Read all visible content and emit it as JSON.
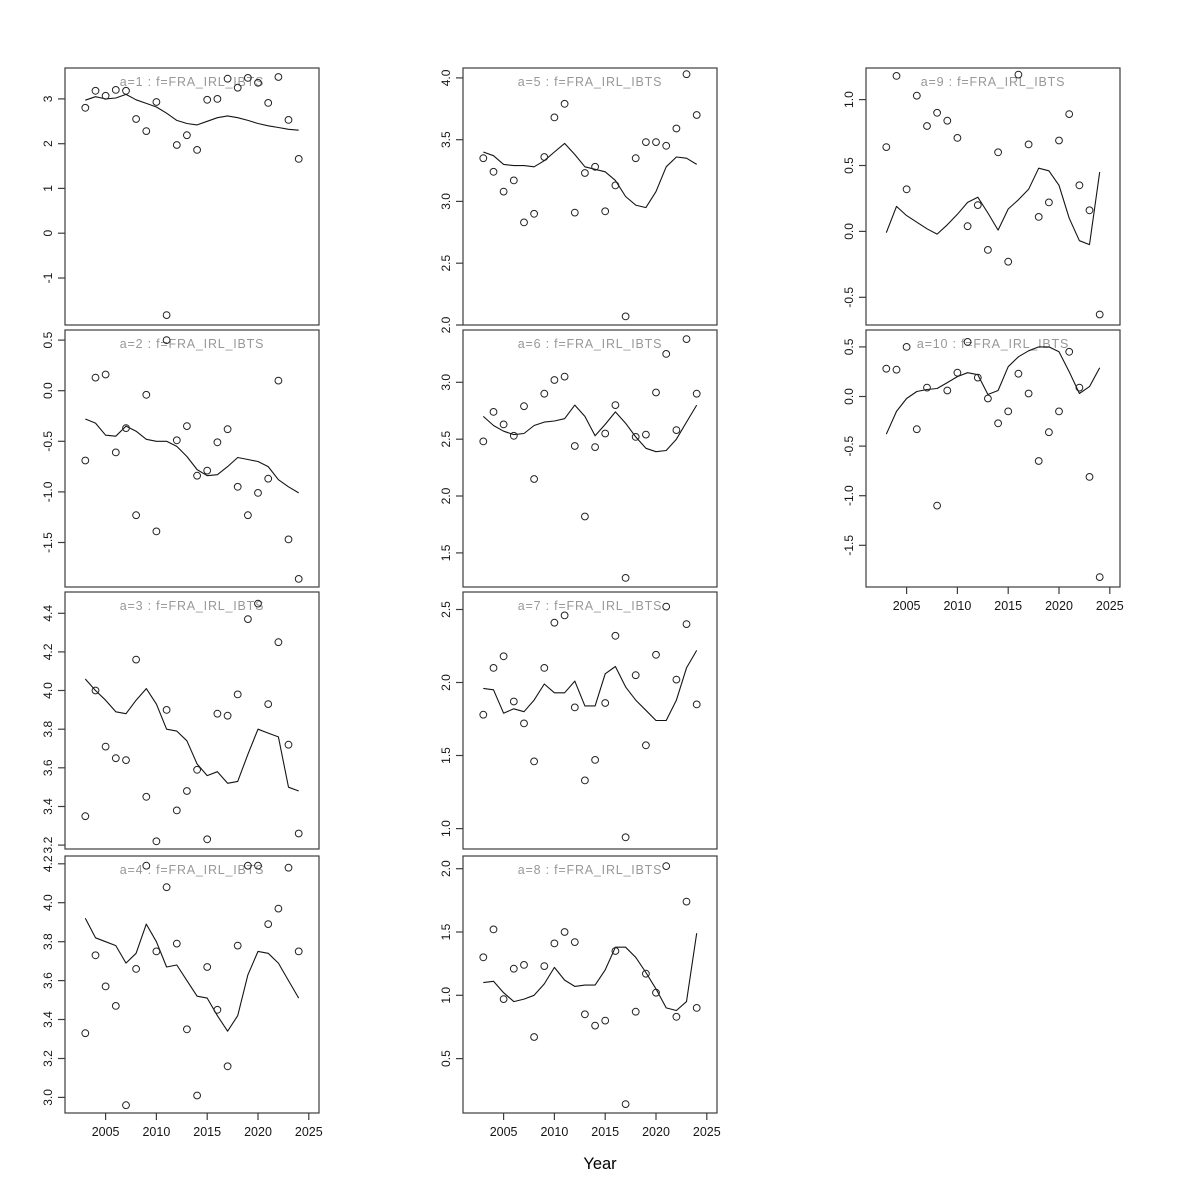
{
  "figure": {
    "background": "#ffffff",
    "colors": {
      "panel_title": "#989898",
      "axis": "#3d3d3d",
      "data": "#141414"
    }
  },
  "chart_data": {
    "type": "scatter",
    "layout": "lattice-grid-3x4",
    "xlabel": "Year",
    "x_ticks": [
      2005,
      2010,
      2015,
      2020,
      2025
    ],
    "xlim": [
      2001,
      2026
    ],
    "years": [
      2003,
      2004,
      2005,
      2006,
      2007,
      2008,
      2009,
      2010,
      2011,
      2012,
      2013,
      2014,
      2015,
      2016,
      2017,
      2018,
      2019,
      2020,
      2021,
      2022,
      2023,
      2024
    ],
    "series_note": "points = observed index, smooth = fitted line",
    "panels": [
      {
        "id": "a1",
        "title": "a=1 : f=FRA_IRL_IBTS",
        "row": 0,
        "col": 0,
        "ylim": [
          -2.05,
          3.69
        ],
        "yticks": [
          -1,
          0,
          1,
          2,
          3
        ],
        "ytick_labels": [
          "-1",
          "0",
          "1",
          "2",
          "3"
        ],
        "x_axis": false,
        "points": [
          2.8,
          3.18,
          3.07,
          3.2,
          3.18,
          2.55,
          2.28,
          2.93,
          -1.83,
          1.97,
          2.19,
          1.86,
          2.98,
          3.0,
          3.45,
          3.25,
          3.47,
          3.36,
          2.91,
          3.49,
          2.53,
          1.66
        ],
        "smooth": [
          2.97,
          3.05,
          3.0,
          3.02,
          3.1,
          2.98,
          2.9,
          2.82,
          2.68,
          2.52,
          2.45,
          2.42,
          2.5,
          2.58,
          2.62,
          2.58,
          2.52,
          2.45,
          2.4,
          2.36,
          2.32,
          2.3
        ]
      },
      {
        "id": "a2",
        "title": "a=2 : f=FRA_IRL_IBTS",
        "row": 1,
        "col": 0,
        "ylim": [
          -1.94,
          0.6
        ],
        "yticks": [
          -1.5,
          -1.0,
          -0.5,
          0.0,
          0.5
        ],
        "ytick_labels": [
          "-1.5",
          "-1.0",
          "-0.5",
          "0.0",
          "0.5"
        ],
        "x_axis": false,
        "points": [
          -0.69,
          0.13,
          0.16,
          -0.61,
          -0.37,
          -1.23,
          -0.04,
          -1.39,
          0.5,
          -0.49,
          -0.35,
          -0.84,
          -0.79,
          -0.51,
          -0.38,
          -0.95,
          -1.23,
          -1.01,
          -0.87,
          0.1,
          -1.47,
          -1.86
        ],
        "smooth": [
          -0.28,
          -0.32,
          -0.44,
          -0.45,
          -0.35,
          -0.4,
          -0.48,
          -0.5,
          -0.5,
          -0.55,
          -0.65,
          -0.78,
          -0.84,
          -0.83,
          -0.75,
          -0.66,
          -0.68,
          -0.7,
          -0.75,
          -0.88,
          -0.95,
          -1.01
        ]
      },
      {
        "id": "a3",
        "title": "a=3 : f=FRA_IRL_IBTS",
        "row": 2,
        "col": 0,
        "ylim": [
          3.18,
          4.51
        ],
        "yticks": [
          3.2,
          3.4,
          3.6,
          3.8,
          4.0,
          4.2,
          4.4
        ],
        "ytick_labels": [
          "3.2",
          "3.4",
          "3.6",
          "3.8",
          "4.0",
          "4.2",
          "4.4"
        ],
        "x_axis": false,
        "points": [
          3.35,
          4.0,
          3.71,
          3.65,
          3.64,
          4.16,
          3.45,
          3.22,
          3.9,
          3.38,
          3.48,
          3.59,
          3.23,
          3.88,
          3.87,
          3.98,
          4.37,
          4.45,
          3.93,
          4.25,
          3.72,
          3.26
        ],
        "smooth": [
          4.06,
          4.0,
          3.95,
          3.89,
          3.88,
          3.95,
          4.01,
          3.93,
          3.8,
          3.79,
          3.74,
          3.62,
          3.56,
          3.58,
          3.52,
          3.53,
          3.67,
          3.8,
          3.78,
          3.76,
          3.5,
          3.48
        ]
      },
      {
        "id": "a4",
        "title": "a=4 : f=FRA_IRL_IBTS",
        "row": 3,
        "col": 0,
        "ylim": [
          2.92,
          4.24
        ],
        "yticks": [
          3.0,
          3.2,
          3.4,
          3.6,
          3.8,
          4.0,
          4.2
        ],
        "ytick_labels": [
          "3.0",
          "3.2",
          "3.4",
          "3.6",
          "3.8",
          "4.0",
          "4.2"
        ],
        "x_axis": true,
        "points": [
          3.33,
          3.73,
          3.57,
          3.47,
          2.96,
          3.66,
          4.19,
          3.75,
          4.08,
          3.79,
          3.35,
          3.01,
          3.67,
          3.45,
          3.16,
          3.78,
          4.19,
          4.19,
          3.89,
          3.97,
          4.18,
          3.75
        ],
        "smooth": [
          3.92,
          3.82,
          3.8,
          3.78,
          3.69,
          3.74,
          3.89,
          3.8,
          3.67,
          3.68,
          3.6,
          3.52,
          3.51,
          3.42,
          3.34,
          3.42,
          3.63,
          3.75,
          3.74,
          3.69,
          3.6,
          3.51
        ]
      },
      {
        "id": "a5",
        "title": "a=5 : f=FRA_IRL_IBTS",
        "row": 0,
        "col": 1,
        "ylim": [
          2.0,
          4.08
        ],
        "yticks": [
          2.0,
          2.5,
          3.0,
          3.5,
          4.0
        ],
        "ytick_labels": [
          "2.0",
          "2.5",
          "3.0",
          "3.5",
          "4.0"
        ],
        "x_axis": false,
        "points": [
          3.35,
          3.24,
          3.08,
          3.17,
          2.83,
          2.9,
          3.36,
          3.68,
          3.79,
          2.91,
          3.23,
          3.28,
          2.92,
          3.13,
          2.07,
          3.35,
          3.48,
          3.48,
          3.45,
          3.59,
          4.03,
          3.7
        ],
        "smooth": [
          3.4,
          3.37,
          3.3,
          3.29,
          3.29,
          3.28,
          3.33,
          3.4,
          3.47,
          3.38,
          3.28,
          3.26,
          3.24,
          3.17,
          3.04,
          2.97,
          2.95,
          3.08,
          3.28,
          3.36,
          3.35,
          3.3
        ]
      },
      {
        "id": "a6",
        "title": "a=6 : f=FRA_IRL_IBTS",
        "row": 1,
        "col": 1,
        "ylim": [
          1.2,
          3.46
        ],
        "yticks": [
          1.5,
          2.0,
          2.5,
          3.0
        ],
        "ytick_labels": [
          "1.5",
          "2.0",
          "2.5",
          "3.0"
        ],
        "x_axis": false,
        "points": [
          2.48,
          2.74,
          2.63,
          2.53,
          2.79,
          2.15,
          2.9,
          3.02,
          3.05,
          2.44,
          1.82,
          2.43,
          2.55,
          2.8,
          1.28,
          2.52,
          2.54,
          2.91,
          3.25,
          2.58,
          3.38,
          2.9
        ],
        "smooth": [
          2.7,
          2.62,
          2.57,
          2.54,
          2.55,
          2.62,
          2.65,
          2.66,
          2.68,
          2.8,
          2.7,
          2.53,
          2.63,
          2.74,
          2.64,
          2.52,
          2.42,
          2.39,
          2.4,
          2.5,
          2.65,
          2.8
        ]
      },
      {
        "id": "a7",
        "title": "a=7 : f=FRA_IRL_IBTS",
        "row": 2,
        "col": 1,
        "ylim": [
          0.86,
          2.62
        ],
        "yticks": [
          1.0,
          1.5,
          2.0,
          2.5
        ],
        "ytick_labels": [
          "1.0",
          "1.5",
          "2.0",
          "2.5"
        ],
        "x_axis": false,
        "points": [
          1.78,
          2.1,
          2.18,
          1.87,
          1.72,
          1.46,
          2.1,
          2.41,
          2.46,
          1.83,
          1.33,
          1.47,
          1.86,
          2.32,
          0.94,
          2.05,
          1.57,
          2.19,
          2.52,
          2.02,
          2.4,
          1.85
        ],
        "smooth": [
          1.96,
          1.95,
          1.79,
          1.82,
          1.8,
          1.88,
          1.99,
          1.93,
          1.93,
          2.01,
          1.84,
          1.84,
          2.06,
          2.11,
          1.97,
          1.88,
          1.81,
          1.74,
          1.74,
          1.88,
          2.1,
          2.22
        ]
      },
      {
        "id": "a8",
        "title": "a=8 : f=FRA_IRL_IBTS",
        "row": 3,
        "col": 1,
        "ylim": [
          0.07,
          2.1
        ],
        "yticks": [
          0.5,
          1.0,
          1.5,
          2.0
        ],
        "ytick_labels": [
          "0.5",
          "1.0",
          "1.5",
          "2.0"
        ],
        "x_axis": true,
        "points": [
          1.3,
          1.52,
          0.97,
          1.21,
          1.24,
          0.67,
          1.23,
          1.41,
          1.5,
          1.42,
          0.85,
          0.76,
          0.8,
          1.35,
          0.14,
          0.87,
          1.17,
          1.02,
          2.02,
          0.83,
          1.74,
          0.9
        ],
        "smooth": [
          1.1,
          1.11,
          1.02,
          0.95,
          0.97,
          1.0,
          1.09,
          1.22,
          1.12,
          1.07,
          1.08,
          1.08,
          1.2,
          1.38,
          1.38,
          1.3,
          1.18,
          1.05,
          0.9,
          0.88,
          0.95,
          1.49
        ]
      },
      {
        "id": "a9",
        "title": "a=9 : f=FRA_IRL_IBTS",
        "row": 0,
        "col": 2,
        "ylim": [
          -0.71,
          1.24
        ],
        "yticks": [
          -0.5,
          0.0,
          0.5,
          1.0
        ],
        "ytick_labels": [
          "-0.5",
          "0.0",
          "0.5",
          "1.0"
        ],
        "x_axis": false,
        "points": [
          0.64,
          1.18,
          0.32,
          1.03,
          0.8,
          0.9,
          0.84,
          0.71,
          0.04,
          0.2,
          -0.14,
          0.6,
          -0.23,
          1.19,
          0.66,
          0.11,
          0.22,
          0.69,
          0.89,
          0.35,
          0.16,
          -0.63
        ],
        "smooth": [
          -0.01,
          0.19,
          0.12,
          0.07,
          0.02,
          -0.02,
          0.05,
          0.13,
          0.22,
          0.26,
          0.14,
          0.01,
          0.17,
          0.24,
          0.32,
          0.48,
          0.46,
          0.35,
          0.1,
          -0.07,
          -0.1,
          0.45
        ]
      },
      {
        "id": "a10",
        "title": "a=10 : f=FRA_IRL_IBTS",
        "row": 1,
        "col": 2,
        "ylim": [
          -1.92,
          0.67
        ],
        "yticks": [
          -1.5,
          -1.0,
          -0.5,
          0.0,
          0.5
        ],
        "ytick_labels": [
          "-1.5",
          "-1.0",
          "-0.5",
          "0.0",
          "0.5"
        ],
        "x_axis": true,
        "points": [
          0.28,
          0.27,
          0.5,
          -0.33,
          0.09,
          -1.1,
          0.06,
          0.24,
          0.55,
          0.19,
          -0.02,
          -0.27,
          -0.15,
          0.23,
          0.03,
          -0.65,
          -0.36,
          -0.15,
          0.45,
          0.09,
          -0.81,
          -1.82
        ],
        "smooth": [
          -0.38,
          -0.15,
          -0.02,
          0.05,
          0.07,
          0.08,
          0.14,
          0.2,
          0.24,
          0.22,
          0.02,
          0.06,
          0.3,
          0.4,
          0.46,
          0.5,
          0.5,
          0.45,
          0.25,
          0.03,
          0.1,
          0.29
        ]
      }
    ]
  }
}
